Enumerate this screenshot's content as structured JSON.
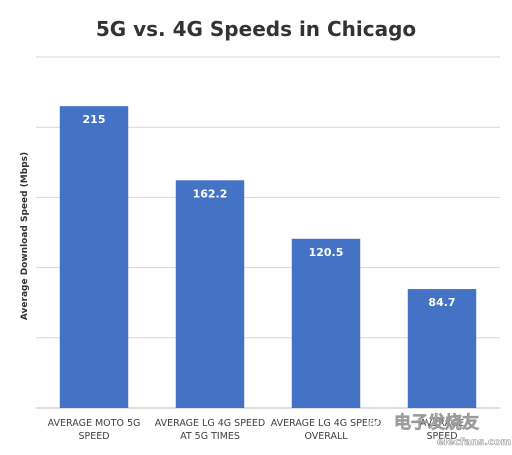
{
  "chart_data": {
    "type": "bar",
    "title": "5G vs. 4G Speeds in Chicago",
    "ylabel": "Average Download Speed (Mbps)",
    "xlabel": "",
    "categories": [
      [
        "AVERAGE MOTO 5G",
        "SPEED"
      ],
      [
        "AVERAGE LG 4G SPEED",
        "AT 5G TIMES"
      ],
      [
        "AVERAGE LG 4G SPEED",
        "OVERALL"
      ],
      [
        "AVERAGE",
        "SPEED"
      ]
    ],
    "values": [
      215,
      162.2,
      120.5,
      84.7
    ],
    "data_labels": [
      "215",
      "162.2",
      "120.5",
      "84.7"
    ],
    "ylim": [
      0,
      250
    ],
    "grid": true,
    "legend": "none",
    "bar_color": "#4472c4"
  },
  "watermark": {
    "text": "电子发烧友",
    "url": "elecfans.com"
  }
}
